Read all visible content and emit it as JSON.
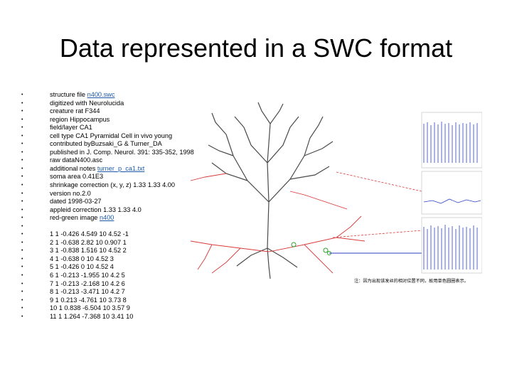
{
  "slide": {
    "title": "Data represented in a SWC format",
    "bullet_glyph": "•",
    "lines": [
      {
        "text": "structure file ",
        "link": "n400.swc"
      },
      {
        "text": "digitized with Neurolucida"
      },
      {
        "text": "creature rat F344"
      },
      {
        "text": "region Hippocampus"
      },
      {
        "text": "field/layer CA1"
      },
      {
        "text": "cell type CA1 Pyramidal Cell in vivo young"
      },
      {
        "text": "contributed byBuzsaki_G & Turner_DA"
      },
      {
        "text": "published in J. Comp. Neurol. 391: 335-352, 1998"
      },
      {
        "text": "raw dataN400.asc"
      },
      {
        "text": "additional notes ",
        "link": "turner_p_ca1.txt"
      },
      {
        "text": "soma area 0.41E3"
      },
      {
        "text": "shrinkage correction (x, y, z) 1.33 1.33 4.00"
      },
      {
        "text": "version no.2.0"
      },
      {
        "text": "dated 1998-03-27"
      },
      {
        "text": "appleid correction 1.33 1.33 4.0"
      },
      {
        "text": "red-green image ",
        "link": "n400"
      },
      {
        "text": ""
      },
      {
        "text": "1 1 -0.426 4.549 10 4.52 -1"
      },
      {
        "text": "2 1 -0.638 2.82 10 0.907 1"
      },
      {
        "text": "3 1 -0.838 1.516 10 4.52 2"
      },
      {
        "text": "4 1 -0.638 0 10 4.52 3"
      },
      {
        "text": "5 1 -0.426 0 10 4.52 4"
      },
      {
        "text": "6 1 -0.213 -1.955 10 4.2 5"
      },
      {
        "text": "7 1 -0.213 -2.168 10 4.2 6"
      },
      {
        "text": "8 1 -0.213 -3.471 10 4.2 7"
      },
      {
        "text": "9 1 0.213 -4.761 10 3.73 8"
      },
      {
        "text": "10 1 0.838 -6.504 10 3.57 9"
      },
      {
        "text": "11 1 1.264 -7.368 10 3.41 10"
      }
    ]
  },
  "figure": {
    "note": "注：因为出现该发丝的相对位置不同，故用单色圆圈表示。",
    "colors": {
      "dendrite": "#4a4a4a",
      "axon": "#d83a3a",
      "trace": "#2c3ec2",
      "marker": "#2aa02a"
    }
  }
}
